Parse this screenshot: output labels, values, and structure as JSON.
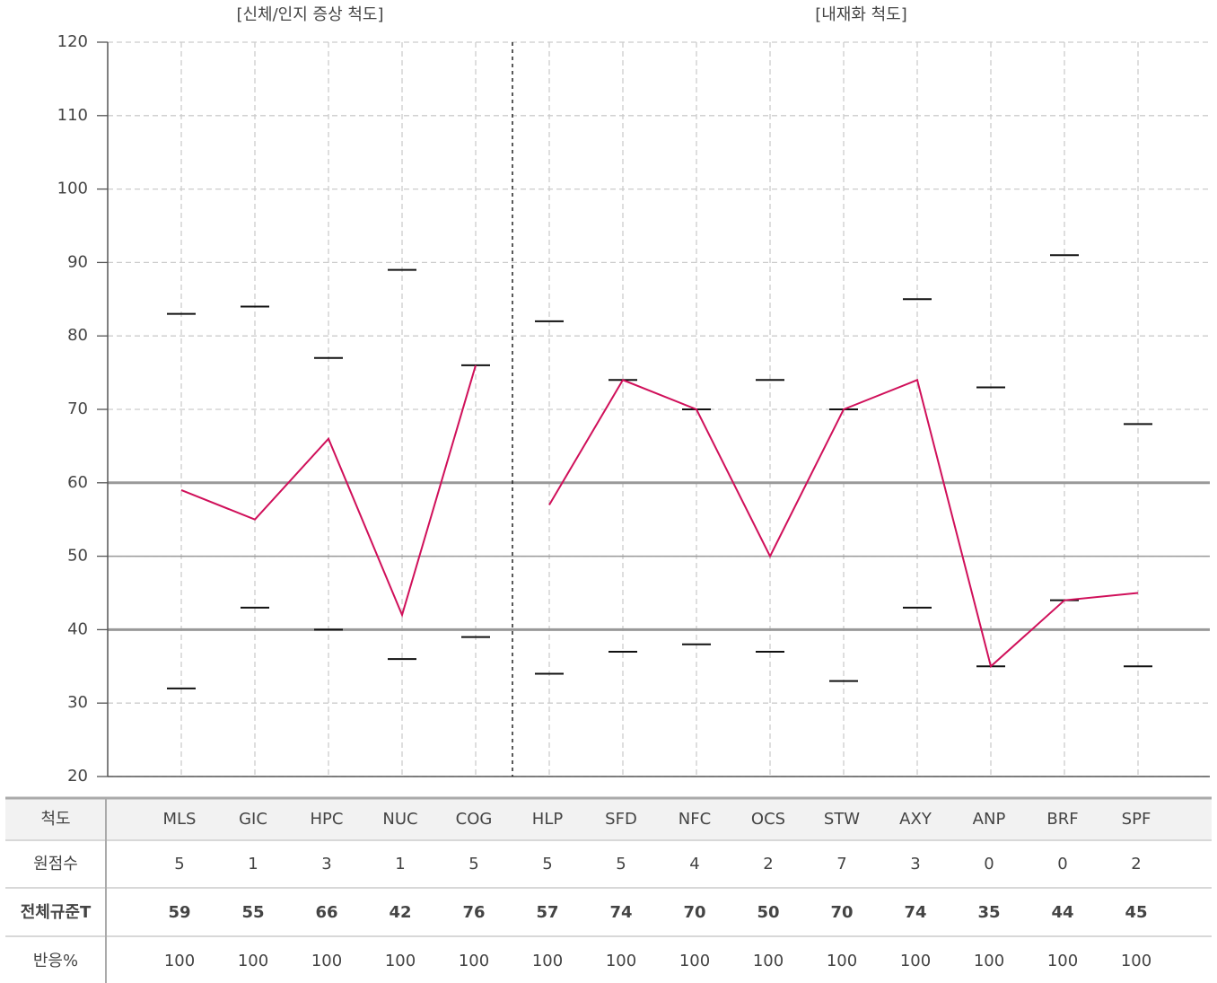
{
  "chart_data": {
    "type": "line",
    "color": "#d0105a",
    "ylim": [
      20,
      120
    ],
    "yticks": [
      20,
      30,
      40,
      50,
      60,
      70,
      80,
      90,
      100,
      110,
      120
    ],
    "grid": true,
    "normal_range": [
      40,
      60
    ],
    "midline": 50,
    "row_labels": [
      "척도",
      "원점수",
      "전체규준T",
      "반응%"
    ],
    "groups": [
      {
        "title": "[신체/인지 증상 척도]",
        "categories": [
          "MLS",
          "GIC",
          "HPC",
          "NUC",
          "COG"
        ],
        "raw": [
          5,
          1,
          3,
          1,
          5
        ],
        "values": [
          59,
          55,
          66,
          42,
          76
        ],
        "response": [
          100,
          100,
          100,
          100,
          100
        ],
        "upper": [
          83,
          84,
          77,
          89,
          76
        ],
        "lower": [
          32,
          43,
          40,
          36,
          39
        ]
      },
      {
        "title": "[내재화 척도]",
        "categories": [
          "HLP",
          "SFD",
          "NFC",
          "OCS",
          "STW",
          "AXY",
          "ANP",
          "BRF",
          "SPF"
        ],
        "raw": [
          5,
          5,
          4,
          2,
          7,
          3,
          0,
          0,
          2
        ],
        "values": [
          57,
          74,
          70,
          50,
          70,
          74,
          35,
          44,
          45
        ],
        "response": [
          100,
          100,
          100,
          100,
          100,
          100,
          100,
          100,
          100
        ],
        "upper": [
          82,
          74,
          70,
          74,
          70,
          85,
          73,
          91,
          68
        ],
        "lower": [
          34,
          37,
          38,
          37,
          33,
          43,
          35,
          44,
          35
        ]
      }
    ]
  }
}
